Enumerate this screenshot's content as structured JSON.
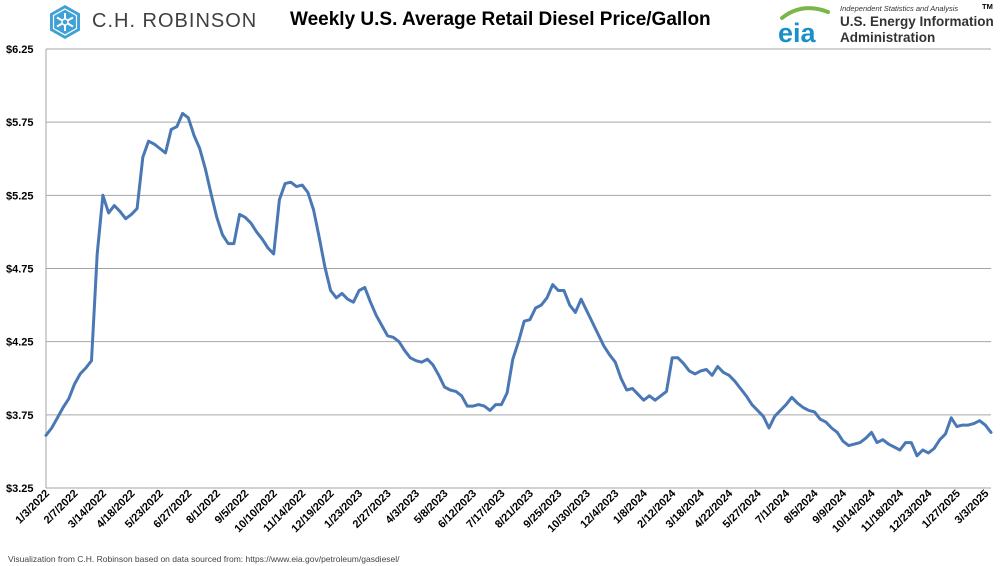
{
  "header": {
    "company_name": "C.H. ROBINSON",
    "title": "Weekly U.S. Average Retail Diesel Price/Gallon",
    "eia_wordmark": "eia",
    "eia_tagline": "Independent Statistics and Analysis",
    "eia_tm": "TM",
    "eia_name_line1": "U.S. Energy Information",
    "eia_name_line2": "Administration"
  },
  "footer": {
    "source": "Visualization from C.H. Robinson based on data sourced from: https://www.eia.gov/petroleum/gasdiesel/"
  },
  "colors": {
    "line": "#4a78b5",
    "grid": "#a6a6a6",
    "ch_logo": "#3fa1d6",
    "eia_blue": "#1a8fc9",
    "eia_green": "#7ab648"
  },
  "chart_data": {
    "type": "line",
    "title": "Weekly U.S. Average Retail Diesel Price/Gallon",
    "xlabel": "",
    "ylabel": "",
    "ylim": [
      3.25,
      6.25
    ],
    "yticks": [
      "$3.25",
      "$3.75",
      "$4.25",
      "$4.75",
      "$5.25",
      "$5.75",
      "$6.25"
    ],
    "grid": true,
    "x_tick_labels": [
      "1/3/2022",
      "2/7/2022",
      "3/14/2022",
      "4/18/2022",
      "5/23/2022",
      "6/27/2022",
      "8/1/2022",
      "9/5/2022",
      "10/10/2022",
      "11/14/2022",
      "12/19/2022",
      "1/23/2023",
      "2/27/2023",
      "4/3/2023",
      "5/8/2023",
      "6/12/2023",
      "7/17/2023",
      "8/21/2023",
      "9/25/2023",
      "10/30/2023",
      "12/4/2023",
      "1/8/2024",
      "2/12/2024",
      "3/18/2024",
      "4/22/2024",
      "5/27/2024",
      "7/1/2024",
      "8/5/2024",
      "9/9/2024",
      "10/14/2024",
      "11/18/2024",
      "12/23/2024",
      "1/27/2025",
      "3/3/2025"
    ],
    "series": [
      {
        "values": [
          3.61,
          3.66,
          3.73,
          3.8,
          3.86,
          3.96,
          4.03,
          4.07,
          4.12,
          4.85,
          5.25,
          5.13,
          5.18,
          5.14,
          5.09,
          5.12,
          5.16,
          5.51,
          5.62,
          5.6,
          5.57,
          5.54,
          5.7,
          5.72,
          5.81,
          5.78,
          5.66,
          5.57,
          5.43,
          5.26,
          5.1,
          4.98,
          4.92,
          4.92,
          5.12,
          5.1,
          5.06,
          5.0,
          4.95,
          4.89,
          4.85,
          5.22,
          5.33,
          5.34,
          5.31,
          5.32,
          5.27,
          5.15,
          4.96,
          4.76,
          4.6,
          4.55,
          4.58,
          4.54,
          4.52,
          4.6,
          4.62,
          4.52,
          4.43,
          4.36,
          4.29,
          4.28,
          4.25,
          4.19,
          4.14,
          4.12,
          4.11,
          4.13,
          4.09,
          4.02,
          3.94,
          3.92,
          3.91,
          3.88,
          3.81,
          3.81,
          3.82,
          3.81,
          3.78,
          3.82,
          3.82,
          3.9,
          4.13,
          4.25,
          4.39,
          4.4,
          4.48,
          4.5,
          4.55,
          4.64,
          4.6,
          4.6,
          4.5,
          4.45,
          4.54,
          4.46,
          4.38,
          4.3,
          4.22,
          4.16,
          4.11,
          4.0,
          3.92,
          3.93,
          3.89,
          3.85,
          3.88,
          3.85,
          3.88,
          3.91,
          4.14,
          4.14,
          4.1,
          4.05,
          4.03,
          4.05,
          4.06,
          4.02,
          4.08,
          4.04,
          4.02,
          3.98,
          3.93,
          3.88,
          3.82,
          3.78,
          3.74,
          3.66,
          3.74,
          3.78,
          3.82,
          3.87,
          3.83,
          3.8,
          3.78,
          3.77,
          3.72,
          3.7,
          3.66,
          3.63,
          3.57,
          3.54,
          3.55,
          3.56,
          3.59,
          3.63,
          3.56,
          3.58,
          3.55,
          3.53,
          3.51,
          3.56,
          3.56,
          3.47,
          3.51,
          3.49,
          3.52,
          3.58,
          3.62,
          3.73,
          3.67,
          3.68,
          3.68,
          3.69,
          3.71,
          3.68,
          3.63
        ]
      }
    ]
  }
}
